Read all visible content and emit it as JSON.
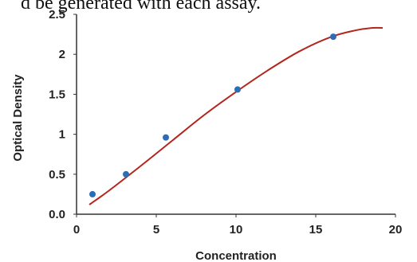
{
  "document": {
    "cropped_text": "d be generated with each assay."
  },
  "chart_data": {
    "type": "scatter",
    "title": "",
    "xlabel": "Concentration",
    "ylabel": "Optical Density",
    "xlim": [
      0,
      20
    ],
    "ylim": [
      0,
      2.5
    ],
    "x_ticks": [
      "0",
      "5",
      "10",
      "15",
      "20"
    ],
    "y_ticks": [
      "0.0",
      "0.5",
      "1",
      "1.5",
      "2",
      "2.5"
    ],
    "grid": false,
    "legend": "none",
    "series": [
      {
        "type": "scatter",
        "x": [
          1,
          3.1,
          5.6,
          10.1,
          16.1
        ],
        "y": [
          0.25,
          0.5,
          0.96,
          1.56,
          2.22
        ],
        "color": "#2c6db5"
      },
      {
        "type": "line",
        "x": [
          0.8,
          2,
          4,
          6,
          8,
          10,
          12,
          14,
          16,
          17.5,
          18.5,
          19.2
        ],
        "y": [
          0.12,
          0.29,
          0.6,
          0.92,
          1.24,
          1.53,
          1.8,
          2.04,
          2.22,
          2.3,
          2.33,
          2.33
        ],
        "color": "#b3261e"
      }
    ]
  }
}
